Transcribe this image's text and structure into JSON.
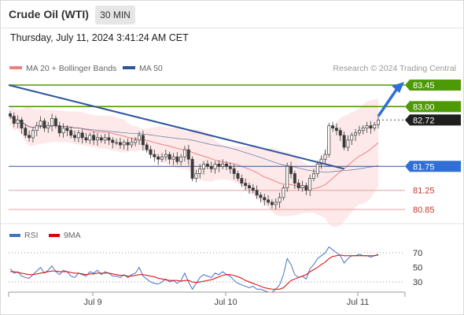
{
  "header": {
    "title": "Crude Oil (WTI)",
    "interval": "30 MIN"
  },
  "timestamp": "Thursday, July 11, 2024 3:41:24 AM CET",
  "credit": "Research © 2024 Trading Central",
  "colors": {
    "bollinger": "#f08080",
    "ma50": "#2f5597",
    "resistance": "#4e9a06",
    "support": "#2f5597",
    "support_minor": "#e8a0a0",
    "rsi": "#4472c4",
    "rsi_ma": "#e00000",
    "candle": "#3a3a3a"
  },
  "chart_data": [
    {
      "type": "candlestick",
      "legend": [
        {
          "name": "MA 20 + Bollinger Bands",
          "color": "#f08080"
        },
        {
          "name": "MA 50",
          "color": "#2f5597"
        }
      ],
      "legend_placement": "top-left",
      "x_ticks": [
        "Jul 9",
        "Jul 10",
        "Jul 11"
      ],
      "levels": [
        {
          "value": 83.45,
          "label": "83.45",
          "type": "resistance"
        },
        {
          "value": 83.0,
          "label": "83.00",
          "type": "resistance"
        },
        {
          "value": 82.72,
          "label": "82.72",
          "type": "last"
        },
        {
          "value": 81.75,
          "label": "81.75",
          "type": "support"
        },
        {
          "value": 81.25,
          "label": "81.25",
          "type": "support_minor"
        },
        {
          "value": 80.85,
          "label": "80.85",
          "type": "support_minor"
        }
      ],
      "trendline": {
        "from": {
          "bar": 0,
          "price": 83.45
        },
        "to": {
          "bar": 88,
          "price": 81.7
        }
      },
      "target_arrow": {
        "from": {
          "bar": 97,
          "price": 82.8
        },
        "to": {
          "bar": 106,
          "price": 83.45
        }
      },
      "ohlc_close": [
        82.8,
        82.65,
        82.72,
        82.55,
        82.4,
        82.35,
        82.5,
        82.6,
        82.7,
        82.55,
        82.6,
        82.75,
        82.6,
        82.45,
        82.55,
        82.5,
        82.4,
        82.35,
        82.45,
        82.35,
        82.3,
        82.4,
        82.3,
        82.35,
        82.3,
        82.35,
        82.3,
        82.25,
        82.25,
        82.2,
        82.25,
        82.2,
        82.25,
        82.3,
        82.4,
        82.2,
        82.1,
        82.0,
        81.95,
        81.9,
        81.95,
        82.0,
        81.9,
        81.95,
        81.85,
        81.95,
        82.1,
        81.9,
        81.5,
        81.6,
        81.7,
        81.8,
        81.75,
        81.7,
        81.8,
        81.75,
        81.8,
        81.75,
        81.7,
        81.6,
        81.5,
        81.4,
        81.35,
        81.3,
        81.25,
        81.15,
        81.1,
        81.05,
        81.0,
        80.95,
        81.0,
        81.1,
        81.3,
        81.75,
        81.6,
        81.4,
        81.3,
        81.35,
        81.25,
        81.5,
        81.6,
        81.8,
        81.9,
        82.0,
        82.6,
        82.55,
        82.5,
        82.4,
        82.15,
        82.3,
        82.4,
        82.45,
        82.5,
        82.55,
        82.6,
        82.55,
        82.62,
        82.72
      ],
      "rsi_axis_ticks": [
        70,
        50,
        30
      ]
    },
    {
      "type": "line",
      "legend": [
        {
          "name": "RSI",
          "color": "#4472c4"
        },
        {
          "name": "9MA",
          "color": "#e00000"
        }
      ],
      "ylim": [
        10,
        85
      ],
      "y_ticks": [
        70,
        50,
        30
      ],
      "rsi": [
        48,
        42,
        44,
        38,
        36,
        35,
        40,
        45,
        50,
        42,
        46,
        52,
        44,
        40,
        46,
        44,
        38,
        36,
        42,
        40,
        38,
        44,
        42,
        46,
        40,
        44,
        42,
        38,
        38,
        36,
        40,
        36,
        40,
        42,
        50,
        38,
        34,
        30,
        28,
        27,
        30,
        34,
        30,
        32,
        28,
        32,
        42,
        30,
        20,
        28,
        36,
        40,
        38,
        36,
        42,
        40,
        44,
        40,
        38,
        32,
        28,
        26,
        24,
        22,
        24,
        20,
        20,
        18,
        16,
        16,
        20,
        26,
        40,
        62,
        54,
        40,
        36,
        38,
        34,
        48,
        54,
        62,
        66,
        70,
        78,
        74,
        70,
        66,
        56,
        62,
        66,
        66,
        68,
        66,
        66,
        64,
        66,
        68
      ],
      "ma9": [
        44,
        44,
        43,
        42,
        41,
        40,
        40,
        41,
        42,
        43,
        44,
        45,
        45,
        44,
        44,
        44,
        43,
        42,
        42,
        41,
        40,
        41,
        41,
        42,
        42,
        42,
        42,
        41,
        40,
        39,
        39,
        38,
        38,
        39,
        40,
        40,
        39,
        38,
        37,
        35,
        34,
        33,
        32,
        32,
        32,
        31,
        32,
        32,
        30,
        29,
        30,
        31,
        32,
        33,
        35,
        37,
        39,
        40,
        40,
        39,
        37,
        35,
        32,
        30,
        28,
        26,
        24,
        22,
        21,
        20,
        20,
        20,
        22,
        27,
        32,
        34,
        36,
        38,
        40,
        44,
        47,
        50,
        54,
        57,
        62,
        65,
        66,
        67,
        66,
        66,
        66,
        66,
        66,
        66,
        66,
        66,
        66,
        67
      ]
    }
  ]
}
